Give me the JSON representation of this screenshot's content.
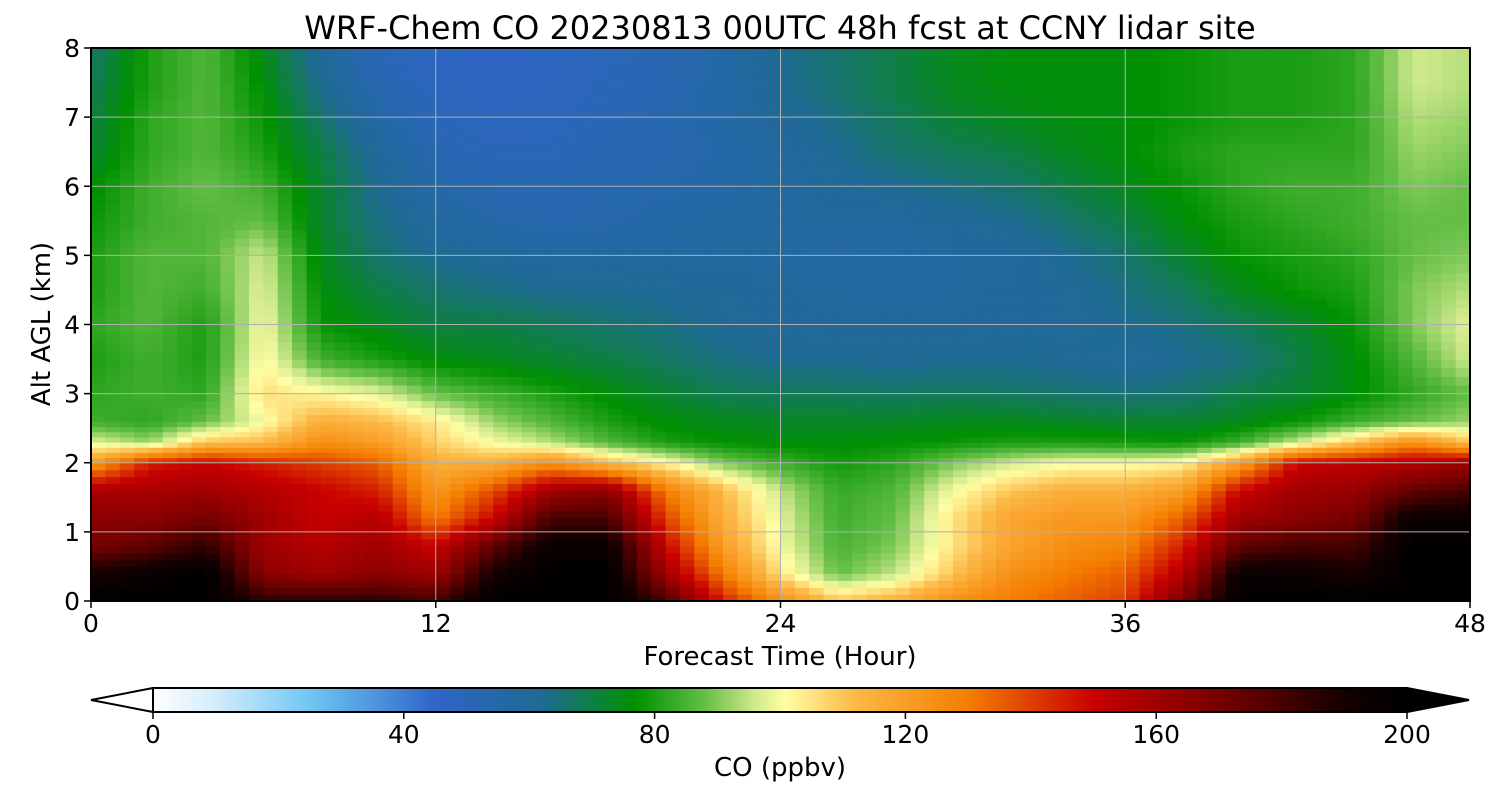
{
  "chart_data": {
    "type": "heatmap",
    "title": "WRF-Chem CO  20230813 00UTC 48h fcst at CCNY lidar site",
    "xlabel": "Forecast Time (Hour)",
    "ylabel": "Alt AGL (km)",
    "xlim": [
      0,
      48
    ],
    "ylim": [
      0,
      8
    ],
    "x_ticks": [
      0,
      12,
      24,
      36,
      48
    ],
    "y_ticks": [
      0,
      1,
      2,
      3,
      4,
      5,
      6,
      7,
      8
    ],
    "grid": true,
    "x": [
      0,
      2,
      4,
      6,
      8,
      10,
      12,
      14,
      16,
      18,
      20,
      22,
      24,
      26,
      28,
      30,
      32,
      34,
      36,
      38,
      40,
      42,
      44,
      46,
      48
    ],
    "y": [
      0,
      0.4,
      0.8,
      1.2,
      1.6,
      2.0,
      2.3,
      2.6,
      3.0,
      3.5,
      4.0,
      4.5,
      5.0,
      5.5,
      6.0,
      6.5,
      7.0,
      7.5,
      8.0
    ],
    "z": [
      [
        200,
        200,
        200,
        185,
        185,
        185,
        180,
        200,
        200,
        200,
        180,
        145,
        125,
        110,
        115,
        125,
        130,
        135,
        140,
        170,
        200,
        200,
        200,
        200,
        200
      ],
      [
        190,
        195,
        200,
        165,
        160,
        165,
        160,
        190,
        200,
        200,
        160,
        130,
        105,
        88,
        95,
        110,
        125,
        130,
        135,
        155,
        195,
        195,
        190,
        200,
        200
      ],
      [
        170,
        175,
        185,
        160,
        155,
        160,
        150,
        175,
        195,
        195,
        150,
        120,
        100,
        85,
        90,
        105,
        118,
        125,
        128,
        145,
        175,
        180,
        180,
        200,
        200
      ],
      [
        165,
        165,
        170,
        160,
        150,
        155,
        130,
        150,
        180,
        180,
        140,
        115,
        98,
        84,
        88,
        105,
        118,
        122,
        122,
        135,
        160,
        165,
        170,
        195,
        195
      ],
      [
        158,
        158,
        160,
        155,
        150,
        145,
        122,
        138,
        160,
        165,
        130,
        112,
        95,
        83,
        86,
        100,
        110,
        115,
        115,
        120,
        150,
        160,
        162,
        175,
        180
      ],
      [
        120,
        145,
        150,
        145,
        140,
        135,
        115,
        115,
        125,
        112,
        102,
        90,
        84,
        79,
        82,
        90,
        96,
        100,
        100,
        102,
        120,
        150,
        152,
        155,
        160
      ],
      [
        98,
        92,
        110,
        112,
        125,
        120,
        108,
        100,
        94,
        86,
        80,
        77,
        76,
        76,
        77,
        78,
        80,
        80,
        79,
        78,
        84,
        96,
        110,
        125,
        110
      ],
      [
        84,
        82,
        88,
        100,
        115,
        112,
        104,
        92,
        86,
        80,
        76,
        74,
        73,
        73,
        73,
        74,
        74,
        73,
        72,
        72,
        74,
        78,
        84,
        88,
        92
      ],
      [
        82,
        84,
        82,
        106,
        102,
        98,
        88,
        84,
        80,
        76,
        72,
        69,
        68,
        68,
        67,
        68,
        67,
        66,
        65,
        66,
        70,
        72,
        76,
        82,
        88
      ],
      [
        80,
        84,
        80,
        102,
        84,
        80,
        76,
        74,
        72,
        70,
        67,
        64,
        62,
        62,
        61,
        62,
        62,
        61,
        60,
        62,
        64,
        70,
        76,
        86,
        96
      ],
      [
        82,
        86,
        80,
        100,
        78,
        74,
        70,
        70,
        68,
        66,
        64,
        61,
        60,
        59,
        59,
        59,
        60,
        60,
        62,
        64,
        68,
        72,
        78,
        90,
        98
      ],
      [
        80,
        86,
        84,
        98,
        76,
        70,
        66,
        64,
        62,
        62,
        61,
        60,
        59,
        58,
        58,
        58,
        59,
        60,
        64,
        68,
        74,
        78,
        80,
        90,
        94
      ],
      [
        80,
        86,
        86,
        96,
        74,
        66,
        62,
        60,
        58,
        58,
        58,
        58,
        58,
        56,
        57,
        58,
        59,
        62,
        66,
        72,
        78,
        80,
        82,
        88,
        90
      ],
      [
        78,
        84,
        86,
        88,
        72,
        64,
        58,
        55,
        53,
        54,
        56,
        57,
        58,
        58,
        58,
        60,
        62,
        66,
        70,
        76,
        80,
        82,
        84,
        88,
        88
      ],
      [
        76,
        84,
        88,
        84,
        72,
        62,
        55,
        52,
        52,
        53,
        54,
        56,
        58,
        60,
        62,
        64,
        66,
        70,
        74,
        78,
        82,
        84,
        84,
        90,
        88
      ],
      [
        72,
        82,
        86,
        80,
        70,
        60,
        52,
        50,
        50,
        52,
        53,
        55,
        58,
        62,
        66,
        68,
        70,
        74,
        76,
        80,
        82,
        82,
        82,
        92,
        90
      ],
      [
        70,
        82,
        86,
        78,
        66,
        56,
        50,
        48,
        49,
        51,
        53,
        56,
        60,
        64,
        68,
        72,
        74,
        76,
        76,
        78,
        80,
        80,
        82,
        94,
        92
      ],
      [
        68,
        80,
        86,
        76,
        62,
        52,
        48,
        47,
        48,
        50,
        52,
        56,
        62,
        66,
        70,
        74,
        76,
        76,
        76,
        78,
        80,
        80,
        82,
        96,
        94
      ],
      [
        66,
        80,
        86,
        74,
        60,
        50,
        47,
        46,
        47,
        49,
        52,
        56,
        62,
        66,
        70,
        74,
        76,
        76,
        76,
        78,
        80,
        80,
        82,
        96,
        94
      ]
    ],
    "colorbar": {
      "label": "CO  (ppbv)",
      "min": 0,
      "max": 200,
      "ticks": [
        0,
        40,
        80,
        120,
        160,
        200
      ],
      "extend": "both",
      "stops": [
        {
          "v": 0,
          "c": "#ffffff"
        },
        {
          "v": 10,
          "c": "#d3ecfb"
        },
        {
          "v": 25,
          "c": "#6fc7f3"
        },
        {
          "v": 45,
          "c": "#2f65c7"
        },
        {
          "v": 62,
          "c": "#1e6a93"
        },
        {
          "v": 77,
          "c": "#009100"
        },
        {
          "v": 88,
          "c": "#64be46"
        },
        {
          "v": 96,
          "c": "#d1ea8c"
        },
        {
          "v": 101,
          "c": "#fffea4"
        },
        {
          "v": 112,
          "c": "#fcb846"
        },
        {
          "v": 130,
          "c": "#f57e00"
        },
        {
          "v": 150,
          "c": "#c80000"
        },
        {
          "v": 172,
          "c": "#6e0000"
        },
        {
          "v": 190,
          "c": "#140000"
        },
        {
          "v": 200,
          "c": "#000000"
        }
      ]
    }
  }
}
